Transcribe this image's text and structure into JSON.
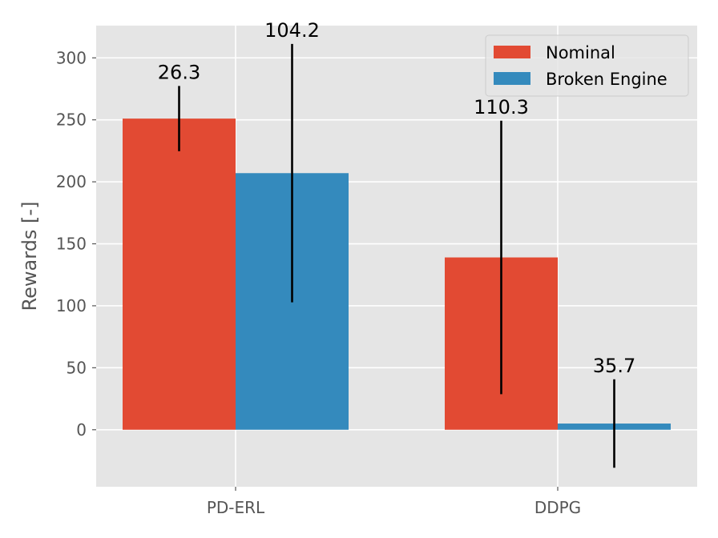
{
  "chart_data": {
    "type": "bar",
    "categories": [
      "PD-ERL",
      "DDPG"
    ],
    "series": [
      {
        "name": "Nominal",
        "color": "#E24A33",
        "values": [
          251,
          139
        ],
        "errors": [
          26.3,
          110.3
        ],
        "error_labels": [
          "26.3",
          "110.3"
        ]
      },
      {
        "name": "Broken Engine",
        "color": "#348ABD",
        "values": [
          207,
          5
        ],
        "errors": [
          104.2,
          35.7
        ],
        "error_labels": [
          "104.2",
          "35.7"
        ]
      }
    ],
    "title": "",
    "xlabel": "",
    "ylabel": "Rewards [-]",
    "ylim": [
      -46,
      326
    ],
    "yticks": [
      0,
      50,
      100,
      150,
      200,
      250,
      300
    ],
    "ytick_labels": [
      "0",
      "50",
      "100",
      "150",
      "200",
      "250",
      "300"
    ],
    "grid": true,
    "legend_position": "top-right",
    "style": "ggplot",
    "background_color": "#E5E5E5",
    "grid_color": "#FFFFFF"
  }
}
